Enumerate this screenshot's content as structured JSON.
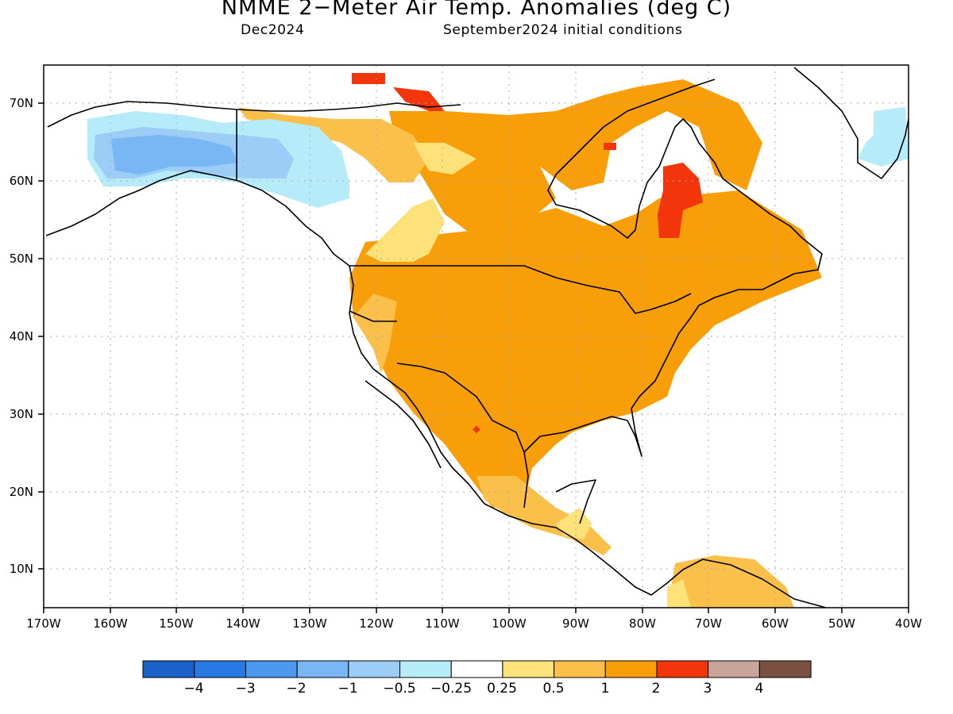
{
  "title": "NMME 2−Meter Air Temp. Anomalies (deg C)",
  "target_month": "Dec2024",
  "initial_conditions": "September2024 initial conditions",
  "axes": {
    "lon_ticks": [
      "170W",
      "160W",
      "150W",
      "140W",
      "130W",
      "120W",
      "110W",
      "100W",
      "90W",
      "80W",
      "70W",
      "60W",
      "50W",
      "40W"
    ],
    "lat_ticks": [
      "10N",
      "20N",
      "30N",
      "40N",
      "50N",
      "60N",
      "70N"
    ],
    "lon_range_deg": [
      -170,
      -40
    ],
    "lat_range_deg": [
      5,
      75
    ],
    "grid": true
  },
  "colorbar": {
    "labels": [
      "−4",
      "−3",
      "−2",
      "−1",
      "−0.5",
      "−0.25",
      "0.25",
      "0.5",
      "1",
      "2",
      "3",
      "4"
    ],
    "colors": [
      "#1b62c8",
      "#2979e4",
      "#4b98ee",
      "#78b6f4",
      "#9ccdf7",
      "#b6ecf9",
      "#ffffff",
      "#fde27a",
      "#fbc049",
      "#f79e09",
      "#f3350b",
      "#c8a49a",
      "#7a5040"
    ]
  },
  "regions": {
    "alaska_negative": "Alaska / Yukon: -0.25 to -2 (blue)",
    "northwest_canada": "0.25 to 0.5",
    "contiguous_us": "1 to 2",
    "hudson_east": "2 to 3 (red) near 60N 75W",
    "north_south_america": "0.5 to 1"
  }
}
